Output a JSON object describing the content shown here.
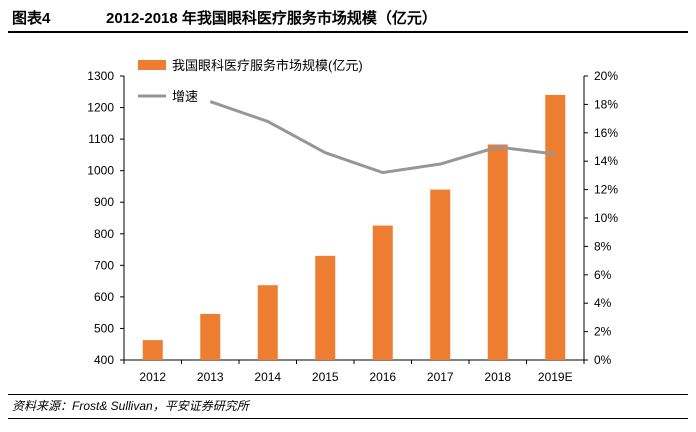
{
  "header": {
    "label": "图表4",
    "title": "2012-2018 年我国眼科医疗服务市场规模（亿元）"
  },
  "source": "资料来源：Frost& Sullivan，平安证券研究所",
  "chart_data": {
    "type": "bar+line",
    "categories": [
      "2012",
      "2013",
      "2014",
      "2015",
      "2016",
      "2017",
      "2018",
      "2019E"
    ],
    "series": [
      {
        "name": "我国眼科医疗服务市场规模(亿元)",
        "type": "bar",
        "axis": "left",
        "color": "#ED7D31",
        "values": [
          463,
          546,
          637,
          730,
          826,
          940,
          1083,
          1240
        ]
      },
      {
        "name": "增速",
        "type": "line",
        "axis": "right",
        "color": "#969696",
        "values": [
          null,
          18.2,
          16.8,
          14.6,
          13.2,
          13.8,
          15.0,
          14.5
        ]
      }
    ],
    "y_left": {
      "min": 400,
      "max": 1300,
      "step": 100,
      "ticks": [
        "400",
        "500",
        "600",
        "700",
        "800",
        "900",
        "1000",
        "1100",
        "1200",
        "1300"
      ]
    },
    "y_right": {
      "min": 0,
      "max": 20,
      "step": 2,
      "ticks": [
        "0%",
        "2%",
        "4%",
        "6%",
        "8%",
        "10%",
        "12%",
        "14%",
        "16%",
        "18%",
        "20%"
      ]
    },
    "legend_position": "top-left",
    "grid": false
  }
}
